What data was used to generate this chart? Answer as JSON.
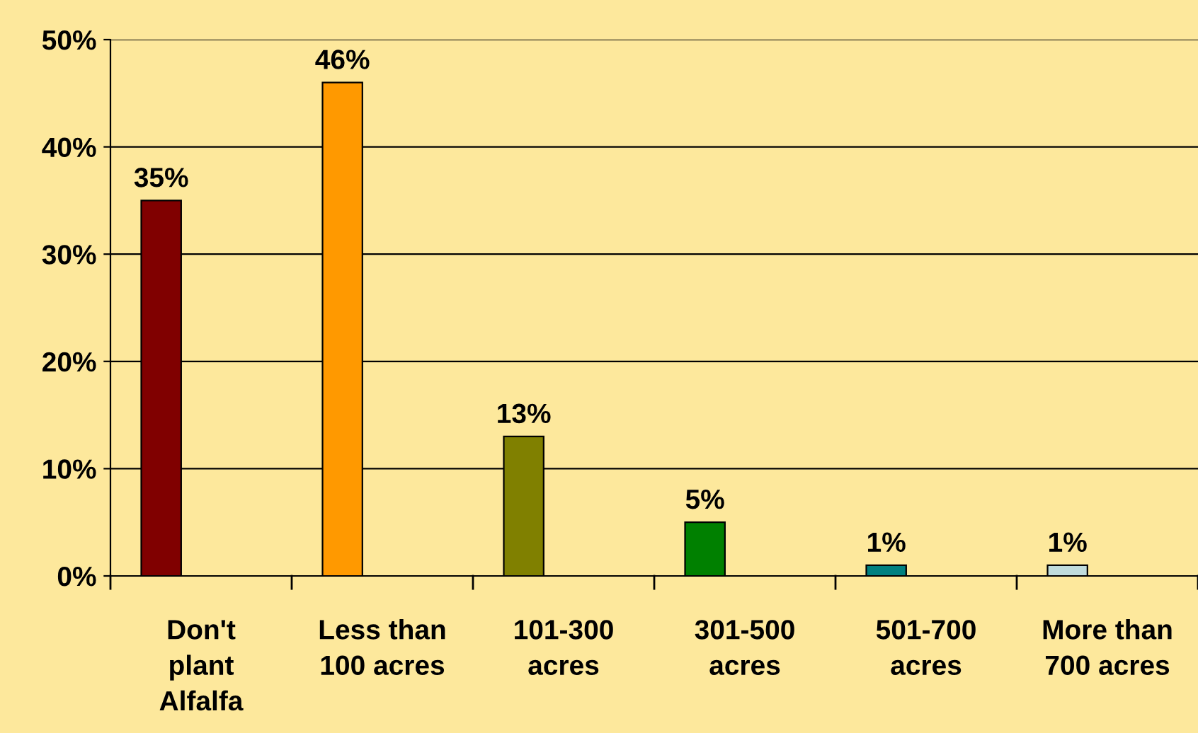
{
  "chart_data": {
    "type": "bar",
    "categories": [
      "Don't\nplant\nAlfalfa",
      "Less than\n100 acres",
      "101-300\nacres",
      "301-500\nacres",
      "501-700\nacres",
      "More than\n700 acres"
    ],
    "values": [
      35,
      46,
      13,
      5,
      1,
      1
    ],
    "colors": [
      "#800000",
      "#ff9900",
      "#808000",
      "#008000",
      "#008080",
      "#c0dcdc"
    ],
    "ylim": [
      0,
      50
    ],
    "yticks": [
      {
        "value": 0,
        "label": "0%"
      },
      {
        "value": 10,
        "label": "10%"
      },
      {
        "value": 20,
        "label": "20%"
      },
      {
        "value": 30,
        "label": "30%"
      },
      {
        "value": 40,
        "label": "40%"
      },
      {
        "value": 50,
        "label": "50%"
      }
    ],
    "value_labels": [
      "35%",
      "46%",
      "13%",
      "5%",
      "1%",
      "1%"
    ],
    "grid": "y"
  }
}
